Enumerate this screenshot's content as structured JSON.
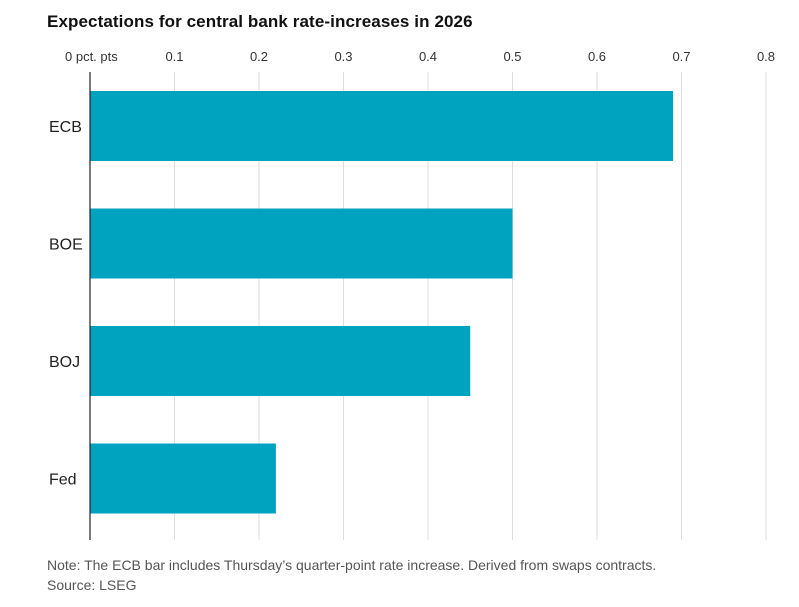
{
  "chart_data": {
    "type": "bar",
    "orientation": "horizontal",
    "title": "Expectations for central bank rate-increases in 2026",
    "categories": [
      "ECB",
      "BOE",
      "BOJ",
      "Fed"
    ],
    "values": [
      0.69,
      0.5,
      0.45,
      0.22
    ],
    "xlim": [
      0,
      0.8
    ],
    "xticks": [
      0,
      0.1,
      0.2,
      0.3,
      0.4,
      0.5,
      0.6,
      0.7,
      0.8
    ],
    "xtick_labels": [
      "0 pct. pts",
      "0.1",
      "0.2",
      "0.3",
      "0.4",
      "0.5",
      "0.6",
      "0.7",
      "0.8"
    ],
    "xaxis_position": "top",
    "grid": true,
    "bar_color": "#00a3bf",
    "gridline_color": "#dddddd"
  },
  "notes": {
    "note": "Note: The ECB bar includes Thursday’s quarter-point rate increase. Derived from swaps contracts.",
    "source": "Source: LSEG"
  }
}
